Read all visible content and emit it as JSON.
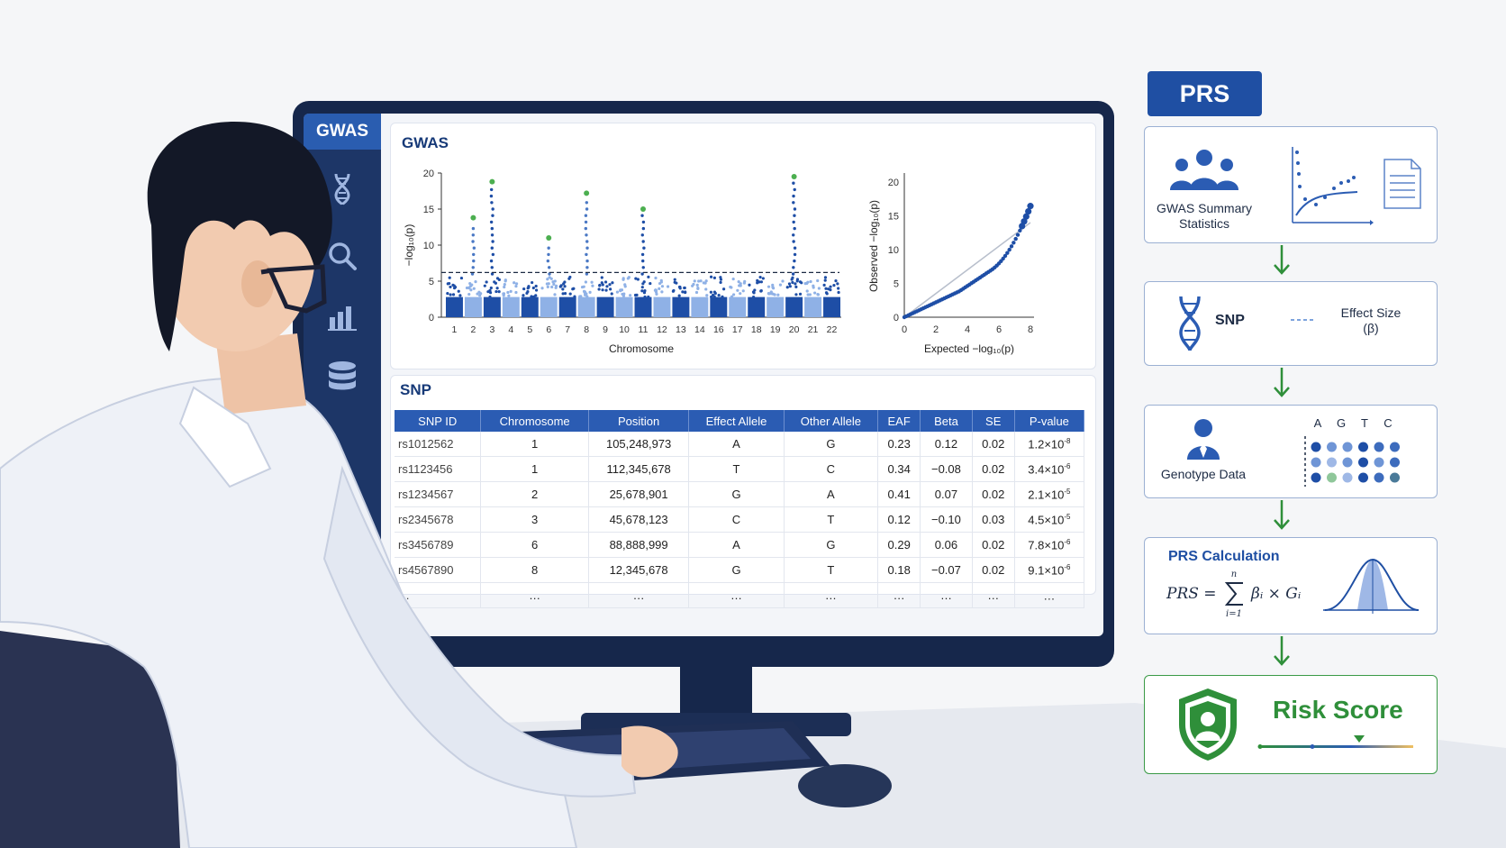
{
  "prs": {
    "title": "PRS"
  },
  "gwas": {
    "brand": "GWAS",
    "panel_title": "GWAS",
    "sidebar_icons": [
      "dna-icon",
      "search-icon",
      "bar-chart-icon",
      "database-icon"
    ]
  },
  "manhattan": {
    "ylabel": "−log₁₀(p)",
    "xlabel": "Chromosome",
    "y_ticks": [
      "0",
      "5",
      "10",
      "15",
      "20"
    ],
    "chromosomes": [
      "1",
      "2",
      "3",
      "4",
      "5",
      "6",
      "7",
      "8",
      "9",
      "10",
      "11",
      "12",
      "13",
      "14",
      "16",
      "17",
      "18",
      "19",
      "20",
      "21",
      "22"
    ],
    "threshold": 6.2,
    "peaks": [
      {
        "chr": "2",
        "value": 13.8
      },
      {
        "chr": "3",
        "value": 18.8
      },
      {
        "chr": "6",
        "value": 11.0
      },
      {
        "chr": "8",
        "value": 17.2
      },
      {
        "chr": "11",
        "value": 15.0
      },
      {
        "chr": "20",
        "value": 19.5
      }
    ]
  },
  "qq": {
    "ylabel": "Observed −log₁₀(p)",
    "xlabel": "Expected −log₁₀(p)",
    "x_ticks": [
      "0",
      "2",
      "4",
      "6",
      "8"
    ],
    "y_ticks": [
      "0",
      "5",
      "10",
      "15",
      "20"
    ]
  },
  "snp_section": {
    "title": "SNP",
    "headers": [
      "SNP ID",
      "Chromosome",
      "Position",
      "Effect Allele",
      "Other Allele",
      "EAF",
      "Beta",
      "SE",
      "P-value"
    ],
    "rows": [
      {
        "id": "rs1012562",
        "chr": "1",
        "pos": "105,248,973",
        "ea": "A",
        "oa": "G",
        "eaf": "0.23",
        "beta": "0.12",
        "se": "0.02",
        "p_base": "1.2×10",
        "p_exp": "-8"
      },
      {
        "id": "rs1123456",
        "chr": "1",
        "pos": "112,345,678",
        "ea": "T",
        "oa": "C",
        "eaf": "0.34",
        "beta": "−0.08",
        "se": "0.02",
        "p_base": "3.4×10",
        "p_exp": "-6"
      },
      {
        "id": "rs1234567",
        "chr": "2",
        "pos": "25,678,901",
        "ea": "G",
        "oa": "A",
        "eaf": "0.41",
        "beta": "0.07",
        "se": "0.02",
        "p_base": "2.1×10",
        "p_exp": "-5"
      },
      {
        "id": "rs2345678",
        "chr": "3",
        "pos": "45,678,123",
        "ea": "C",
        "oa": "T",
        "eaf": "0.12",
        "beta": "−0.10",
        "se": "0.03",
        "p_base": "4.5×10",
        "p_exp": "-5"
      },
      {
        "id": "rs3456789",
        "chr": "6",
        "pos": "88,888,999",
        "ea": "A",
        "oa": "G",
        "eaf": "0.29",
        "beta": "0.06",
        "se": "0.02",
        "p_base": "7.8×10",
        "p_exp": "-6"
      },
      {
        "id": "rs4567890",
        "chr": "8",
        "pos": "12,345,678",
        "ea": "G",
        "oa": "T",
        "eaf": "0.18",
        "beta": "−0.07",
        "se": "0.02",
        "p_base": "9.1×10",
        "p_exp": "-6"
      },
      {
        "id": "…",
        "chr": "…",
        "pos": "…",
        "ea": "…",
        "oa": "…",
        "eaf": "…",
        "beta": "…",
        "se": "…",
        "p_base": "…",
        "p_exp": ""
      }
    ]
  },
  "flow": {
    "summary_label_1": "GWAS Summary",
    "summary_label_2": "Statistics",
    "snp_label": "SNP",
    "effect_label_1": "Effect Size",
    "effect_label_2": "(β)",
    "genotype_label": "Genotype Data",
    "genotype_letters": [
      "A",
      "G",
      "T",
      "C"
    ],
    "prs_calc_title": "PRS Calculation",
    "formula_lhs": "PRS =",
    "formula_top": "n",
    "formula_bottom": "i=1",
    "formula_rhs": "βᵢ × Gᵢ",
    "risk_label": "Risk Score"
  },
  "colors": {
    "navy": "#16274b",
    "blue": "#2b5cb3",
    "light_blue": "#7da3dd",
    "green": "#2f8f3a",
    "green_peak": "#4caf50"
  }
}
